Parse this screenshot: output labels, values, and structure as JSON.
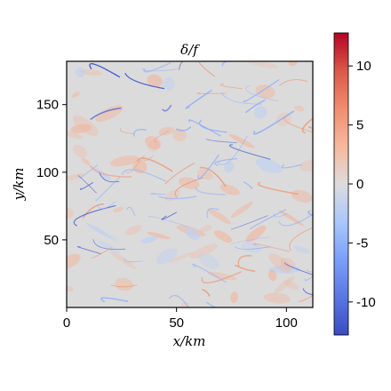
{
  "chart_data": {
    "type": "heatmap",
    "title": "δ/f",
    "xlabel": "x/km",
    "ylabel": "y/km",
    "xlim": [
      0,
      112
    ],
    "ylim": [
      0,
      182
    ],
    "x_ticks": [
      "0",
      "50",
      "100"
    ],
    "x_tick_values": [
      0,
      50,
      100
    ],
    "y_ticks": [
      "50",
      "100",
      "150"
    ],
    "y_tick_values": [
      50,
      100,
      150
    ],
    "colorbar": {
      "colormap": "coolwarm",
      "range": [
        -12.8,
        12.8
      ],
      "ticks": [
        "-10",
        "-5",
        "0",
        "5",
        "10"
      ],
      "tick_values": [
        -10,
        -5,
        0,
        5,
        10
      ]
    },
    "field_description": "turbulent divergence field; mostly near 0 with thin negative (blue) filaments and patchy positive (red) regions",
    "grid": false
  },
  "colors": {
    "neutral": "#dddcdc",
    "negative_strong": "#3b4cc0",
    "positive_strong": "#b40426",
    "axis_frame": "#000000"
  }
}
